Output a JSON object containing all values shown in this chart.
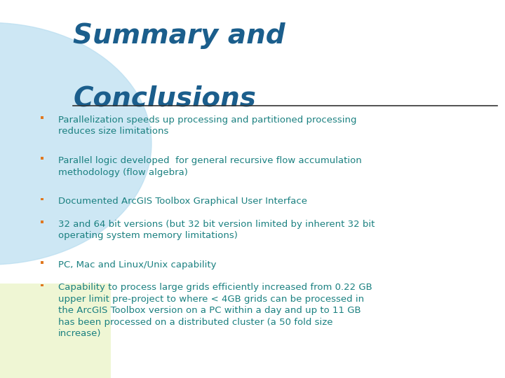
{
  "title_line1": "Summary and",
  "title_line2": "Conclusions",
  "title_color": "#1b5e8c",
  "title_fontsize": 28,
  "underline_color": "#333333",
  "bullet_color": "#e07820",
  "text_color": "#1a8080",
  "bullet_items": [
    "Parallelization speeds up processing and partitioned processing\nreduces size limitations",
    "Parallel logic developed  for general recursive flow accumulation\nmethodology (flow algebra)",
    "Documented ArcGIS Toolbox Graphical User Interface",
    "32 and 64 bit versions (but 32 bit version limited by inherent 32 bit\noperating system memory limitations)",
    "PC, Mac and Linux/Unix capability",
    "Capability to process large grids efficiently increased from 0.22 GB\nupper limit pre-project to where < 4GB grids can be processed in\nthe ArcGIS Toolbox version on a PC within a day and up to 11 GB\nhas been processed on a distributed cluster (a 50 fold size\nincrease)"
  ],
  "bullet_fontsize": 9.5,
  "bg_color": "#ffffff",
  "circle_color": "#b8ddf0",
  "bottom_left_color": "#eef5d0"
}
